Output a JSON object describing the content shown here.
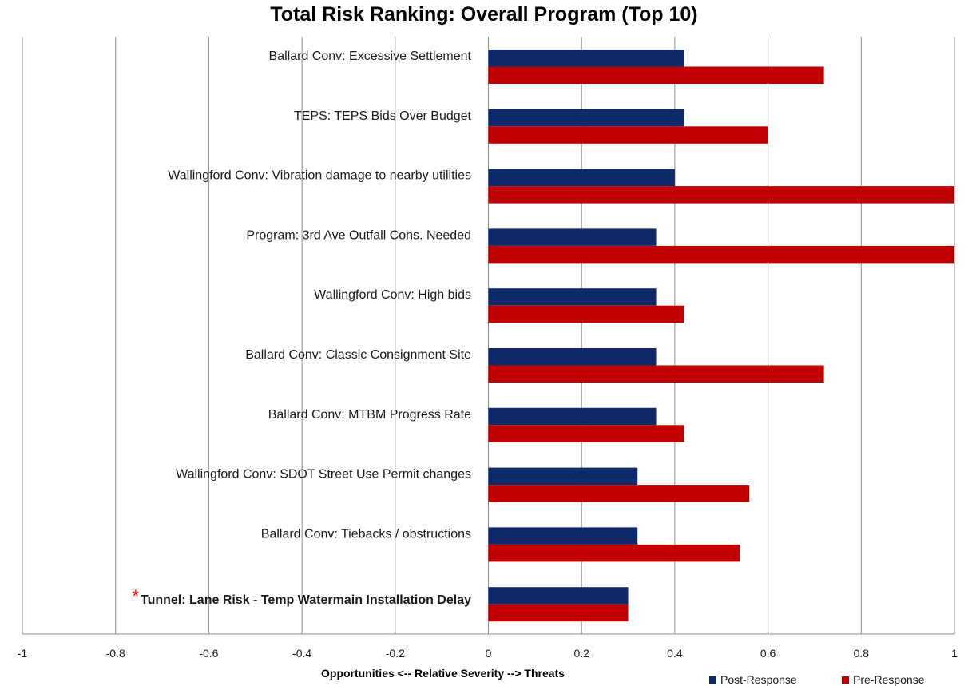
{
  "chart_data": {
    "type": "bar",
    "orientation": "horizontal",
    "title": "Total Risk Ranking: Overall Program (Top 10)",
    "xlabel": "Opportunities <-- Relative Severity --> Threats",
    "xlim": [
      -1,
      1
    ],
    "xticks": [
      "-1",
      "-0.8",
      "-0.6",
      "-0.4",
      "-0.2",
      "0",
      "0.2",
      "0.4",
      "0.6",
      "0.8",
      "1"
    ],
    "grid": true,
    "legend_position": "bottom-right",
    "categories": [
      "Ballard Conv: Excessive Settlement",
      "TEPS: TEPS Bids Over Budget",
      "Wallingford Conv: Vibration damage to nearby utilities",
      "Program: 3rd Ave Outfall Cons. Needed",
      "Wallingford Conv: High bids",
      "Ballard Conv: Classic Consignment Site",
      "Ballard Conv: MTBM Progress Rate",
      "Wallingford Conv: SDOT Street Use Permit changes",
      "Ballard Conv: Tiebacks / obstructions",
      "Tunnel: Lane Risk - Temp Watermain Installation Delay"
    ],
    "highlighted_category_marker": "*",
    "series": [
      {
        "name": "Post-Response",
        "color": "#0e2a6b",
        "values": [
          0.42,
          0.42,
          0.4,
          0.36,
          0.36,
          0.36,
          0.36,
          0.32,
          0.32,
          0.3
        ]
      },
      {
        "name": "Pre-Response",
        "color": "#c00000",
        "values": [
          0.72,
          0.6,
          1.0,
          1.0,
          0.42,
          0.72,
          0.42,
          0.56,
          0.54,
          0.3
        ]
      }
    ]
  }
}
